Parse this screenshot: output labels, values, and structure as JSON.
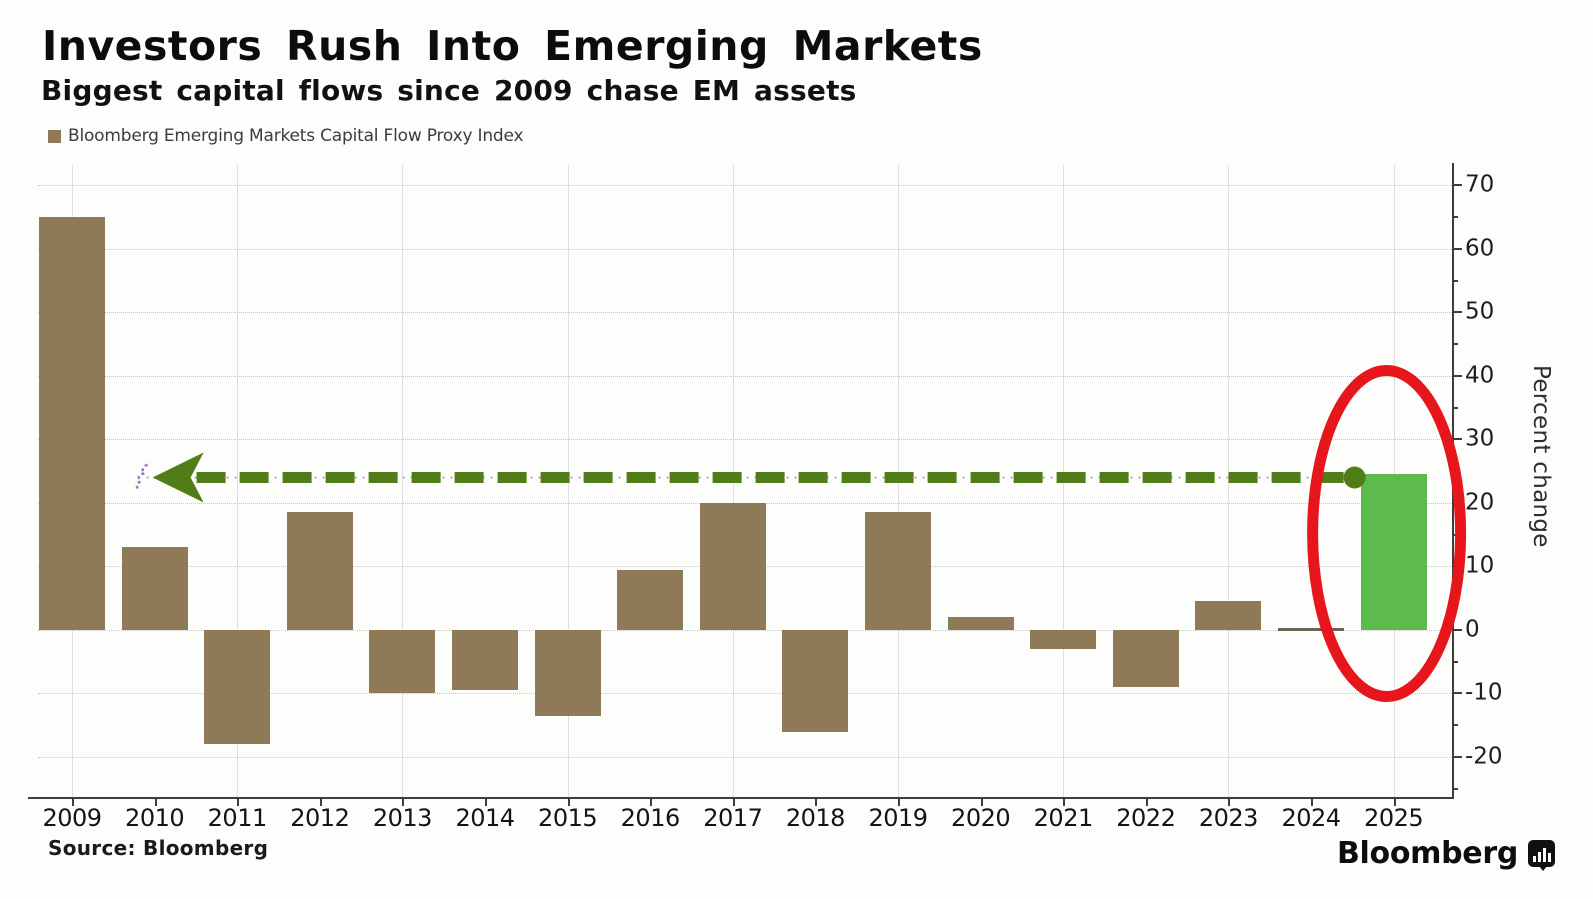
{
  "header": {
    "title": "Investors Rush Into Emerging Markets",
    "subtitle": "Biggest capital flows since 2009 chase EM assets"
  },
  "legend": {
    "label": "Bloomberg Emerging Markets Capital Flow Proxy Index",
    "swatch_color": "#8e7a57"
  },
  "footer": {
    "source": "Source: Bloomberg",
    "brand": "Bloomberg"
  },
  "chart_data": {
    "type": "bar",
    "title": "Investors Rush Into Emerging Markets",
    "subtitle": "Biggest capital flows since 2009 chase EM assets",
    "series_name": "Bloomberg Emerging Markets Capital Flow Proxy Index",
    "categories": [
      "2009",
      "2010",
      "2011",
      "2012",
      "2013",
      "2014",
      "2015",
      "2016",
      "2017",
      "2018",
      "2019",
      "2020",
      "2021",
      "2022",
      "2023",
      "2024",
      "2025"
    ],
    "values": [
      65,
      13,
      -18,
      18.5,
      -10,
      -9.5,
      -13.5,
      9.5,
      20,
      -16,
      18.5,
      2,
      -3,
      -9,
      4.5,
      0.2,
      24.5
    ],
    "xlabel": "",
    "ylabel": "Percent change",
    "ylim": [
      -26.3,
      73.2
    ],
    "yticks": [
      70,
      60,
      50,
      40,
      30,
      20,
      10,
      0,
      -10,
      -20
    ],
    "yticks_minor": [
      65,
      55,
      45,
      35,
      25,
      15,
      5,
      -5,
      -15,
      -25
    ],
    "grid": true,
    "legend_position": "top-left",
    "colors": {
      "bar_default": "#8e7a57",
      "bar_highlight": "#5cbb4c",
      "bar_near_zero": "#6b6354",
      "annotation_green": "#507d17",
      "annotation_red": "#e6161c",
      "annotation_purple": "#8465c2",
      "axis": "#3d3d3d"
    },
    "highlight_year": "2025",
    "annotations": {
      "dashed_arrow": {
        "y_value": 24,
        "from_year": "2025",
        "points_to_year": "2010",
        "style": "dashed line with left arrowhead and dot marker at 2025 bar",
        "color": "#507d17"
      },
      "red_ellipse": {
        "around_year": "2025",
        "color": "#e6161c"
      }
    }
  }
}
